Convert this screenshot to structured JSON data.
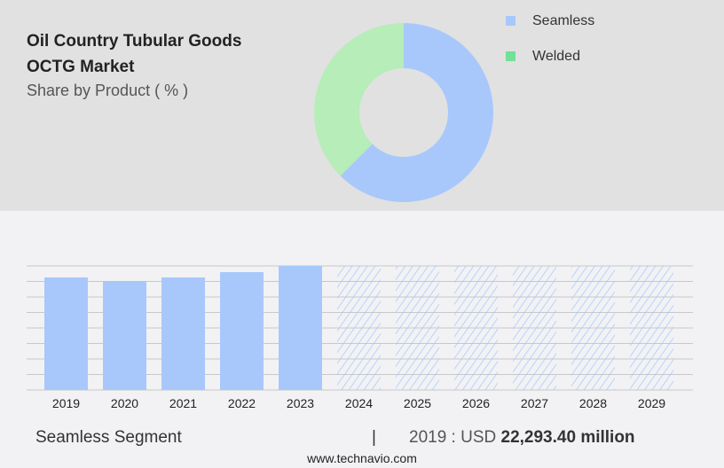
{
  "title_line1": "Oil Country Tubular Goods",
  "title_line2": "OCTG Market",
  "subtitle": "Share by Product ( % )",
  "colors": {
    "seamless": "#a8c8fc",
    "welded": "#b6edb8",
    "welded_legend": "#72e096",
    "bg_top": "#e1e1e1",
    "bg_bottom": "#f2f2f4"
  },
  "chart_data": [
    {
      "type": "pie",
      "donut": true,
      "legend": "top-right",
      "slices": [
        {
          "name": "Seamless",
          "value": 62.5
        },
        {
          "name": "Welded",
          "value": 37.5
        }
      ]
    },
    {
      "type": "bar",
      "grid": true,
      "categories": [
        "2019",
        "2020",
        "2021",
        "2022",
        "2023",
        "2024",
        "2025",
        "2026",
        "2027",
        "2028",
        "2029"
      ],
      "values": [
        22293.4,
        21590,
        22293,
        23350,
        24580,
        null,
        null,
        null,
        null,
        null,
        null
      ],
      "forecast": [
        "2024",
        "2025",
        "2026",
        "2027",
        "2028",
        "2029"
      ],
      "ylim": [
        0,
        24580
      ],
      "ylabel": "",
      "xlabel": ""
    }
  ],
  "footer": {
    "segment": "Seamless Segment",
    "separator": "|",
    "year_label": "2019 : USD",
    "value": "22,293.40 million",
    "website": "www.technavio.com"
  }
}
